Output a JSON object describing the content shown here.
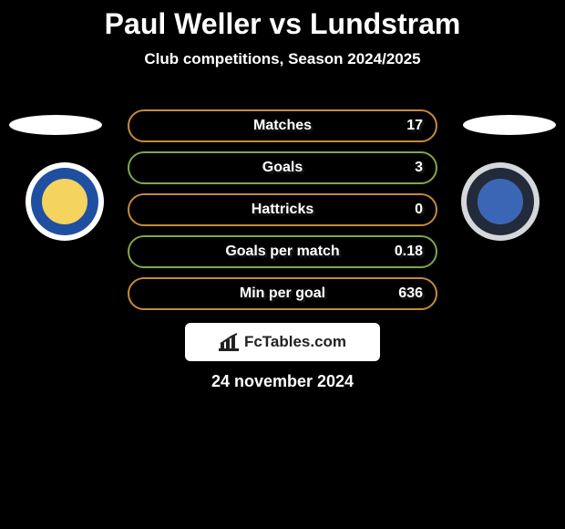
{
  "title": "Paul Weller vs Lundstram",
  "subtitle": "Club competitions, Season 2024/2025",
  "date": "24 november 2024",
  "fctables_label": "FcTables.com",
  "colors": {
    "background": "#000000",
    "text": "#ffffff",
    "fctables_bg": "#ffffff",
    "fctables_text": "#222222"
  },
  "stats": [
    {
      "label": "Matches",
      "value": "17",
      "border_color": "#c58a3a"
    },
    {
      "label": "Goals",
      "value": "3",
      "border_color": "#7fa84a"
    },
    {
      "label": "Hattricks",
      "value": "0",
      "border_color": "#c58a3a"
    },
    {
      "label": "Goals per match",
      "value": "0.18",
      "border_color": "#7fa84a"
    },
    {
      "label": "Min per goal",
      "value": "636",
      "border_color": "#c58a3a"
    }
  ],
  "left_player": {
    "ellipse_color": "#ffffff"
  },
  "right_player": {
    "ellipse_color": "#ffffff"
  },
  "left_club": {
    "name": "rochdale",
    "ring_color": "#ffffff",
    "main_color": "#1f4fa0",
    "accent_color": "#f4d35e"
  },
  "right_club": {
    "name": "oldham-athletic",
    "ring_color": "#d4d8db",
    "main_color": "#232a3a",
    "accent_color": "#3b66b5"
  }
}
